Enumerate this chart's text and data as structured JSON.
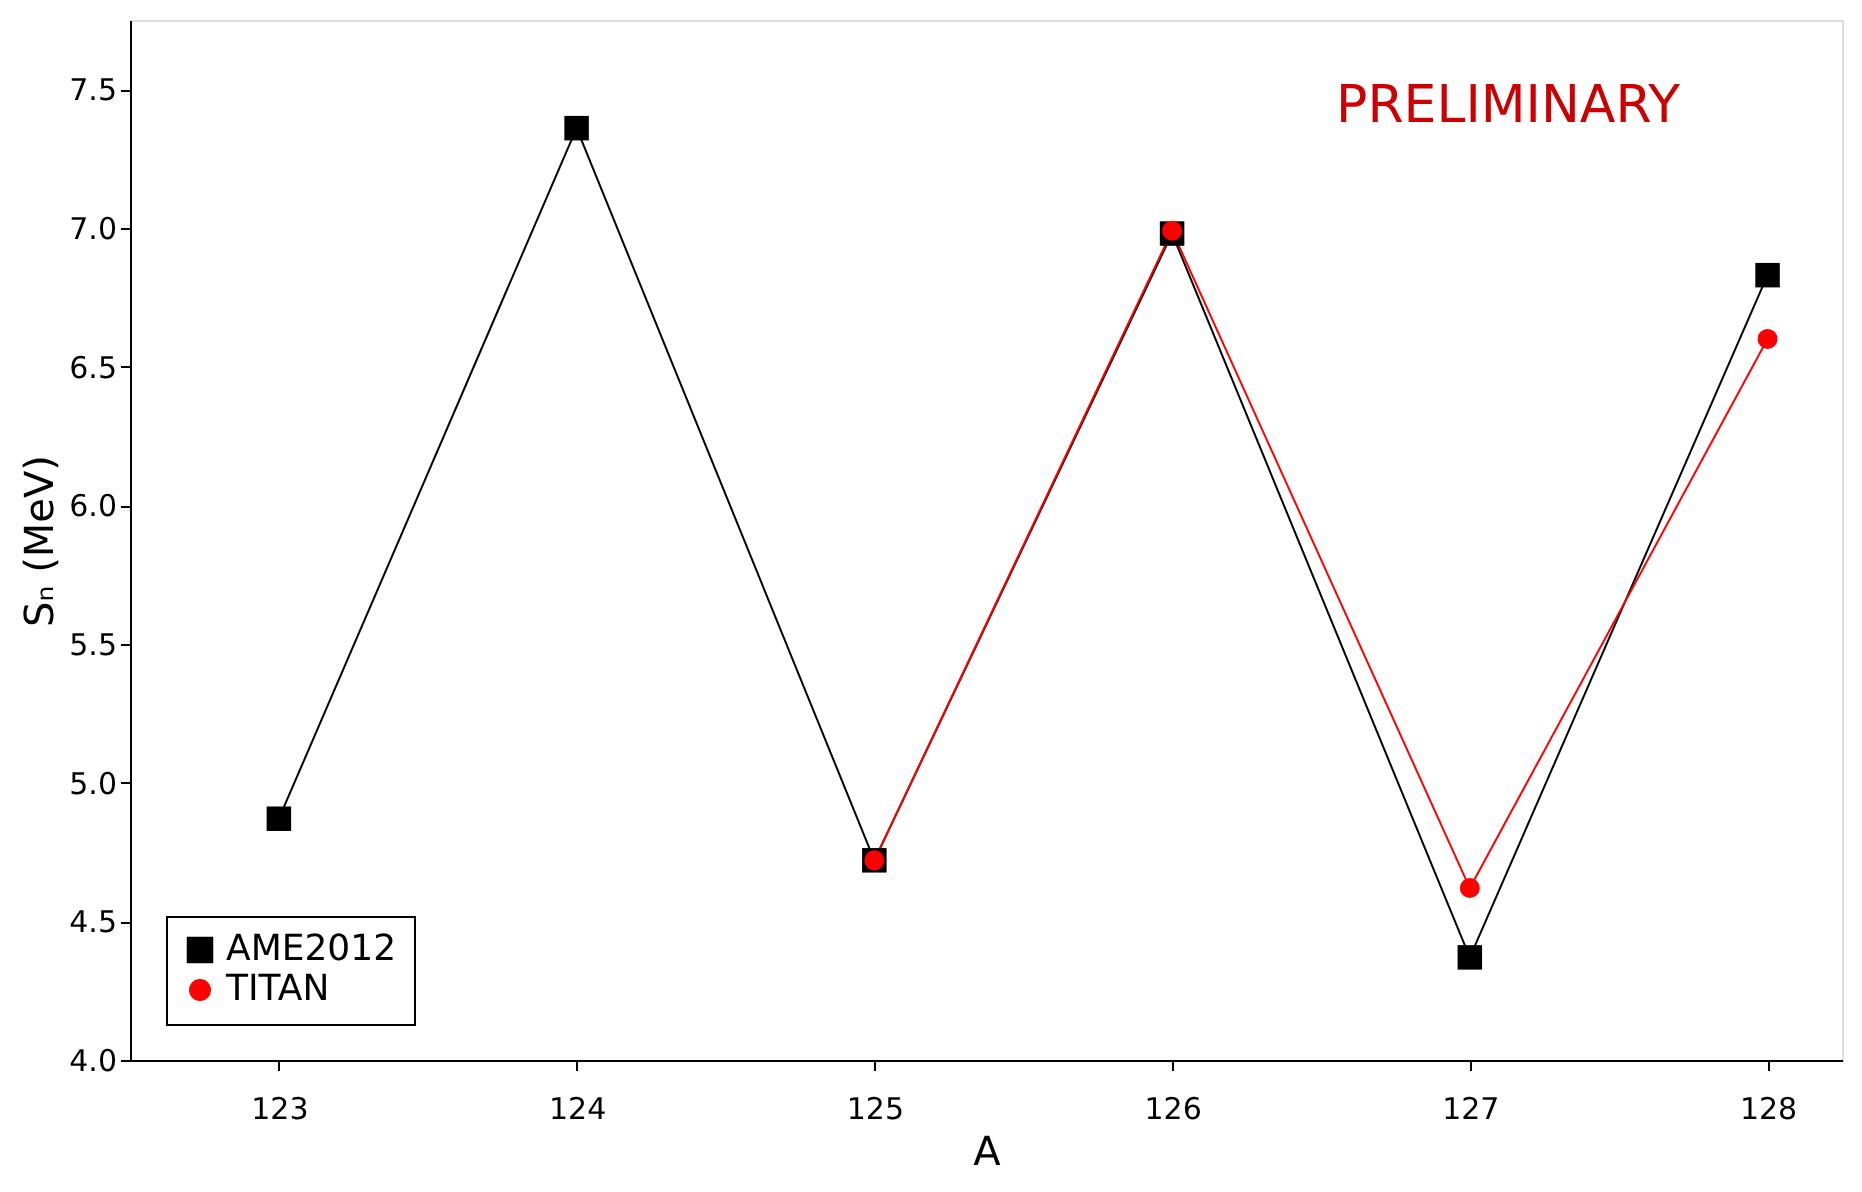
{
  "chart_data": {
    "type": "line",
    "xlabel": "A",
    "ylabel": "Sₙ (MeV)",
    "x": [
      123,
      124,
      125,
      126,
      127,
      128
    ],
    "series": [
      {
        "name": "AME2012",
        "color": "#000000",
        "marker": "square",
        "values": [
          4.87,
          7.36,
          4.72,
          6.98,
          4.37,
          6.83
        ]
      },
      {
        "name": "TITAN",
        "color": "#ff0000",
        "marker": "circle",
        "x": [
          125,
          126,
          127,
          128
        ],
        "values": [
          4.72,
          6.99,
          4.62,
          6.6
        ]
      }
    ],
    "xlim": [
      122.5,
      128.25
    ],
    "xticks": [
      123,
      124,
      125,
      126,
      127,
      128
    ],
    "ylim": [
      4.0,
      7.75
    ],
    "yticks": [
      {
        "value": 4.0,
        "label": "4.0"
      },
      {
        "value": 4.5,
        "label": "4.5"
      },
      {
        "value": 5.0,
        "label": "5.0"
      },
      {
        "value": 5.5,
        "label": "5.5"
      },
      {
        "value": 6.0,
        "label": "6.0"
      },
      {
        "value": 6.5,
        "label": "6.5"
      },
      {
        "value": 7.0,
        "label": "7.0"
      },
      {
        "value": 7.5,
        "label": "7.5"
      }
    ],
    "annotations": [
      "PRELIMINARY"
    ],
    "legend": "bottom left",
    "grid": false,
    "line_style": "solid"
  }
}
